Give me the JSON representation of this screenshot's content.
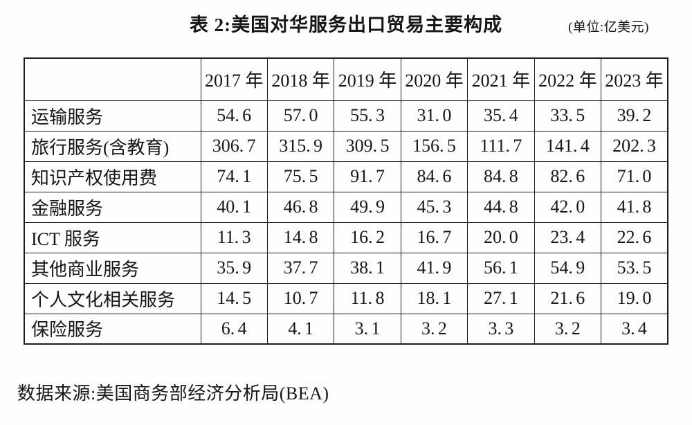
{
  "page": {
    "title": "表 2:美国对华服务出口贸易主要构成",
    "unit_note": "(单位:亿美元)",
    "source_note": "数据来源:美国商务部经济分析局(BEA)"
  },
  "chart_data": {
    "type": "table",
    "title": "表 2:美国对华服务出口贸易主要构成",
    "unit": "亿美元",
    "columns": [
      "2017 年",
      "2018 年",
      "2019 年",
      "2020 年",
      "2021 年",
      "2022 年",
      "2023 年"
    ],
    "rows": [
      {
        "label": "运输服务",
        "values": [
          54.6,
          57.0,
          55.3,
          31.0,
          35.4,
          33.5,
          39.2
        ]
      },
      {
        "label": "旅行服务(含教育)",
        "values": [
          306.7,
          315.9,
          309.5,
          156.5,
          111.7,
          141.4,
          202.3
        ]
      },
      {
        "label": "知识产权使用费",
        "values": [
          74.1,
          75.5,
          91.7,
          84.6,
          84.8,
          82.6,
          71.0
        ]
      },
      {
        "label": "金融服务",
        "values": [
          40.1,
          46.8,
          49.9,
          45.3,
          44.8,
          42.0,
          41.8
        ]
      },
      {
        "label": "ICT 服务",
        "values": [
          11.3,
          14.8,
          16.2,
          16.7,
          20.0,
          23.4,
          22.6
        ]
      },
      {
        "label": "其他商业服务",
        "values": [
          35.9,
          37.7,
          38.1,
          41.9,
          56.1,
          54.9,
          53.5
        ]
      },
      {
        "label": "个人文化相关服务",
        "values": [
          14.5,
          10.7,
          11.8,
          18.1,
          27.1,
          21.6,
          19.0
        ]
      },
      {
        "label": "保险服务",
        "values": [
          6.4,
          4.1,
          3.1,
          3.2,
          3.3,
          3.2,
          3.4
        ]
      }
    ],
    "source": "数据来源:美国商务部经济分析局(BEA)",
    "layout_hints": {
      "grid": "full-borders",
      "header_row": true,
      "values_decimals": 1
    }
  },
  "colors": {
    "text": "#161616",
    "border": "#1c1c1c",
    "background": "#fefefe"
  }
}
